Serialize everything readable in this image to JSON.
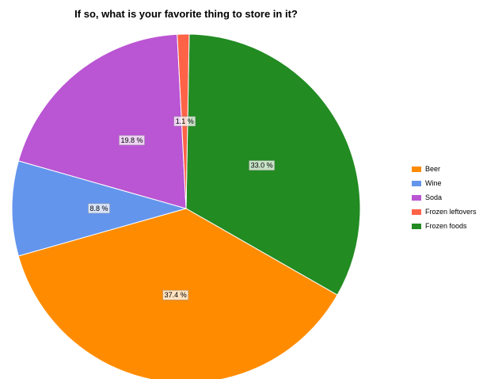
{
  "chart_data": {
    "type": "pie",
    "title": "If so, what is your favorite thing to store in it?",
    "slices": [
      {
        "label": "Beer",
        "value": 37.4,
        "display": "37.4 %",
        "color": "#FF8C00"
      },
      {
        "label": "Wine",
        "value": 8.8,
        "display": "8.8 %",
        "color": "#6495ED"
      },
      {
        "label": "Soda",
        "value": 19.8,
        "display": "19.8 %",
        "color": "#BA55D3"
      },
      {
        "label": "Frozen leftovers",
        "value": 1.1,
        "display": "1.1 %",
        "color": "#FF6347"
      },
      {
        "label": "Frozen foods",
        "value": 33.0,
        "display": "33.0 %",
        "color": "#228B22"
      }
    ],
    "legend_position": "right"
  }
}
